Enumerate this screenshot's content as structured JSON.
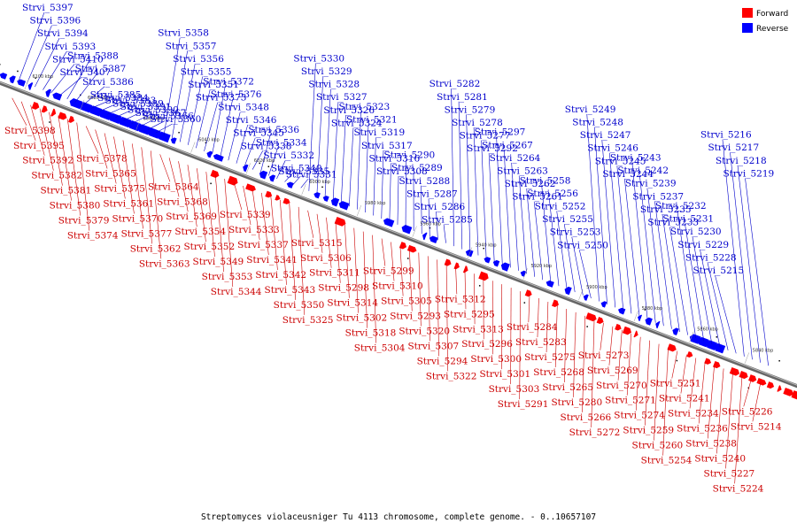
{
  "legend": {
    "forward_label": "Forward",
    "reverse_label": "Reverse",
    "forward_color": "#ff0000",
    "reverse_color": "#0000ff"
  },
  "caption": "Streptomyces violaceusniger Tu 4113 chromosome, complete genome. - 0..10657107",
  "ticks": [
    "6100 kbp",
    "6080 kbp",
    "6060 kbp",
    "6040 kbp",
    "6020 kbp",
    "6000 kbp",
    "5980 kbp",
    "5960 kbp",
    "5940 kbp",
    "5920 kbp",
    "5900 kbp",
    "5880 kbp",
    "5860 kbp",
    "5840 kbp"
  ],
  "reverse_labels": [
    "Strvi_5397",
    "Strvi_5396",
    "Strvi_5394",
    "Strvi_5393",
    "Strvi_5410",
    "Strvi_5407",
    "Strvi_5388",
    "Strvi_5387",
    "Strvi_5386",
    "Strvi_5385",
    "Strvi_5384",
    "Strvi_5383",
    "Strvi_5389",
    "Strvi_5391",
    "Strvi_5390",
    "Strvi_5367",
    "Strvi_5366",
    "Strvi_5360",
    "Strvi_5358",
    "Strvi_5357",
    "Strvi_5356",
    "Strvi_5355",
    "Strvi_5351",
    "Strvi_5373",
    "Strvi_5372",
    "Strvi_5376",
    "Strvi_5348",
    "Strvi_5346",
    "Strvi_5345",
    "Strvi_5338",
    "Strvi_5336",
    "Strvi_5334",
    "Strvi_5332",
    "Strvi_5340",
    "Strvi_5335",
    "Strvi_5331",
    "Strvi_5330",
    "Strvi_5329",
    "Strvi_5328",
    "Strvi_5327",
    "Strvi_5326",
    "Strvi_5324",
    "Strvi_5323",
    "Strvi_5321",
    "Strvi_5319",
    "Strvi_5317",
    "Strvi_5316",
    "Strvi_5308",
    "Strvi_5290",
    "Strvi_5289",
    "Strvi_5288",
    "Strvi_5287",
    "Strvi_5286",
    "Strvi_5285",
    "Strvi_5282",
    "Strvi_5281",
    "Strvi_5279",
    "Strvi_5278",
    "Strvi_5277",
    "Strvi_5292",
    "Strvi_5297",
    "Strvi_5267",
    "Strvi_5264",
    "Strvi_5263",
    "Strvi_5262",
    "Strvi_5261",
    "Strvi_5258",
    "Strvi_5256",
    "Strvi_5252",
    "Strvi_5255",
    "Strvi_5253",
    "Strvi_5250",
    "Strvi_5249",
    "Strvi_5248",
    "Strvi_5247",
    "Strvi_5246",
    "Strvi_5245",
    "Strvi_5244",
    "Strvi_5243",
    "Strvi_5242",
    "Strvi_5239",
    "Strvi_5237",
    "Strvi_5235",
    "Strvi_5233",
    "Strvi_5232",
    "Strvi_5231",
    "Strvi_5230",
    "Strvi_5229",
    "Strvi_5228",
    "Strvi_5215",
    "Strvi_5216",
    "Strvi_5217",
    "Strvi_5218",
    "Strvi_5219"
  ],
  "forward_labels": [
    "Strvi_5398",
    "Strvi_5395",
    "Strvi_5392",
    "Strvi_5382",
    "Strvi_5381",
    "Strvi_5380",
    "Strvi_5379",
    "Strvi_5374",
    "Strvi_5378",
    "Strvi_5365",
    "Strvi_5375",
    "Strvi_5361",
    "Strvi_5370",
    "Strvi_5377",
    "Strvi_5362",
    "Strvi_5363",
    "Strvi_5364",
    "Strvi_5368",
    "Strvi_5369",
    "Strvi_5354",
    "Strvi_5352",
    "Strvi_5349",
    "Strvi_5353",
    "Strvi_5344",
    "Strvi_5339",
    "Strvi_5333",
    "Strvi_5337",
    "Strvi_5341",
    "Strvi_5342",
    "Strvi_5343",
    "Strvi_5350",
    "Strvi_5325",
    "Strvi_5315",
    "Strvi_5306",
    "Strvi_5311",
    "Strvi_5298",
    "Strvi_5314",
    "Strvi_5302",
    "Strvi_5318",
    "Strvi_5304",
    "Strvi_5299",
    "Strvi_5310",
    "Strvi_5305",
    "Strvi_5293",
    "Strvi_5320",
    "Strvi_5307",
    "Strvi_5294",
    "Strvi_5322",
    "Strvi_5312",
    "Strvi_5295",
    "Strvi_5313",
    "Strvi_5296",
    "Strvi_5300",
    "Strvi_5301",
    "Strvi_5303",
    "Strvi_5291",
    "Strvi_5284",
    "Strvi_5283",
    "Strvi_5275",
    "Strvi_5268",
    "Strvi_5265",
    "Strvi_5280",
    "Strvi_5266",
    "Strvi_5272",
    "Strvi_5273",
    "Strvi_5269",
    "Strvi_5270",
    "Strvi_5271",
    "Strvi_5274",
    "Strvi_5259",
    "Strvi_5260",
    "Strvi_5254",
    "Strvi_5251",
    "Strvi_5241",
    "Strvi_5234",
    "Strvi_5236",
    "Strvi_5238",
    "Strvi_5240",
    "Strvi_5227",
    "Strvi_5224",
    "Strvi_5226",
    "Strvi_5214"
  ]
}
